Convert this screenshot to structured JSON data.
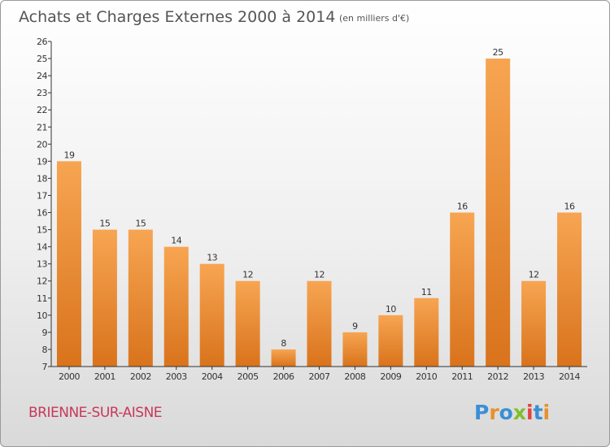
{
  "chart_data": {
    "type": "bar",
    "title": "Achats et Charges Externes 2000 à 2014",
    "unit": "(en milliers d'€)",
    "categories": [
      "2000",
      "2001",
      "2002",
      "2003",
      "2004",
      "2005",
      "2006",
      "2007",
      "2008",
      "2009",
      "2010",
      "2011",
      "2012",
      "2013",
      "2014"
    ],
    "values": [
      19,
      15,
      15,
      14,
      13,
      12,
      8,
      12,
      9,
      10,
      11,
      16,
      25,
      12,
      16
    ],
    "value_labels": [
      "19",
      "15",
      "15",
      "14",
      "13",
      "12",
      "8",
      "12",
      "9",
      "10",
      "11",
      "16",
      "25",
      "12",
      "16"
    ],
    "y_ticks": [
      "7",
      "8",
      "9",
      "10",
      "11",
      "12",
      "13",
      "14",
      "15",
      "16",
      "17",
      "18",
      "19",
      "20",
      "21",
      "22",
      "23",
      "24",
      "25",
      "26"
    ],
    "ylim": [
      7,
      26
    ],
    "grid": false,
    "bar_color": "#f0923a"
  },
  "footer": {
    "place": "BRIENNE-SUR-AISNE",
    "logo": [
      "P",
      "r",
      "o",
      "x",
      "i",
      "t",
      "i"
    ],
    "logo_colors": [
      "#3a8fd6",
      "#e8902a",
      "#3a8fd6",
      "#7fbf2a",
      "#e64040",
      "#3a8fd6",
      "#e8902a"
    ]
  }
}
